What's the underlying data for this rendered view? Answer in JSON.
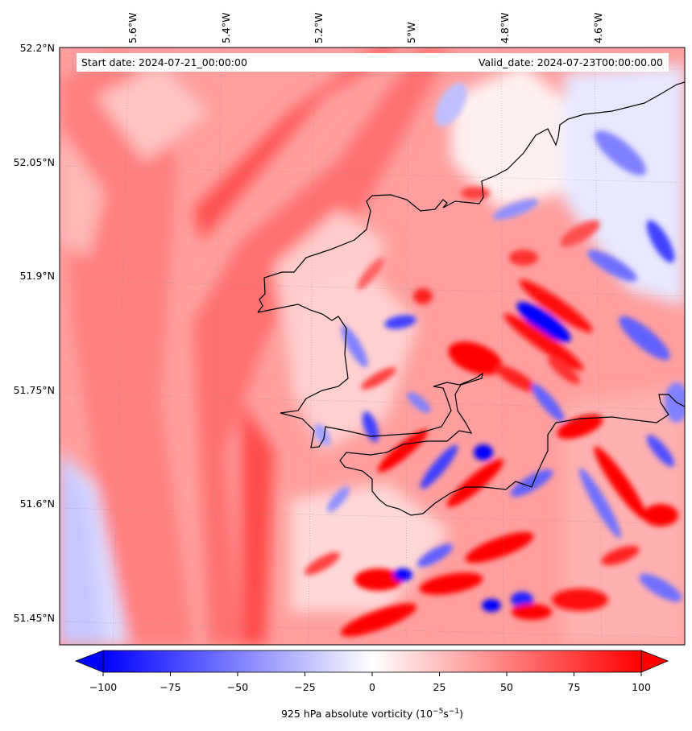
{
  "header": {
    "start_label": "Start date: 2024-07-21_00:00:00",
    "valid_label": "Valid_date: 2024-07-23T00:00:00.00"
  },
  "lon_labels": [
    "5.6°W",
    "5.4°W",
    "5.2°W",
    "5°W",
    "4.8°W",
    "4.6°W"
  ],
  "lat_labels": [
    "52.2°N",
    "52.05°N",
    "51.9°N",
    "51.75°N",
    "51.6°N",
    "51.45°N"
  ],
  "colorbar": {
    "ticks": [
      "−100",
      "−75",
      "−50",
      "−25",
      "0",
      "25",
      "50",
      "75",
      "100"
    ],
    "min": -100,
    "max": 100,
    "extend": "both",
    "low_color": "#0000ff",
    "mid_color": "#ffffff",
    "high_color": "#ff0000",
    "label_prefix": "925 hPa absolute vorticity (10",
    "label_exp1": "−5",
    "label_mid": "s",
    "label_exp2": "−1",
    "label_suffix": ")"
  },
  "map": {
    "projection": "Lambert conformal",
    "coastline_color": "#000000",
    "gridlines": "dotted"
  }
}
